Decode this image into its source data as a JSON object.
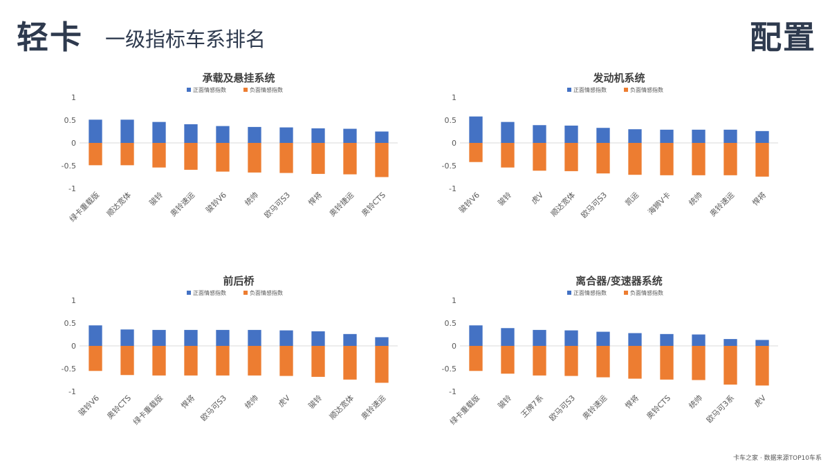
{
  "header": {
    "title": "轻卡",
    "subtitle": "一级指标车系排名",
    "right_label": "配置"
  },
  "footnote": "卡车之家 · 数据来源TOP10车系",
  "colors": {
    "positive": "#4472c4",
    "negative": "#ed7d31",
    "axis_text": "#595959",
    "title_text": "#404040"
  },
  "legend": {
    "positive": "正面情感指数",
    "negative": "负面情感指数"
  },
  "chart_data": [
    {
      "type": "bar",
      "title": "承载及悬挂系统",
      "categories": [
        "绿卡重载版",
        "顺达宽体",
        "骏铃",
        "奥铃速运",
        "骏铃V6",
        "统帅",
        "欧马可S3",
        "悍将",
        "奥铃捷运",
        "奥铃CTS"
      ],
      "series": [
        {
          "name": "正面情感指数",
          "values": [
            0.51,
            0.51,
            0.46,
            0.41,
            0.37,
            0.35,
            0.34,
            0.32,
            0.31,
            0.25
          ]
        },
        {
          "name": "负面情感指数",
          "values": [
            -0.49,
            -0.49,
            -0.54,
            -0.59,
            -0.63,
            -0.65,
            -0.66,
            -0.68,
            -0.69,
            -0.75
          ]
        }
      ],
      "ylim": [
        -1,
        1
      ],
      "yticks": [
        "1",
        "0.5",
        "0",
        "-0.5",
        "-1"
      ]
    },
    {
      "type": "bar",
      "title": "发动机系统",
      "categories": [
        "骏铃V6",
        "骏铃",
        "虎V",
        "顺达宽体",
        "欧马可S3",
        "凯运",
        "海狮V卡",
        "统帅",
        "奥铃速运",
        "悍将"
      ],
      "series": [
        {
          "name": "正面情感指数",
          "values": [
            0.58,
            0.46,
            0.39,
            0.38,
            0.33,
            0.3,
            0.29,
            0.29,
            0.29,
            0.26
          ]
        },
        {
          "name": "负面情感指数",
          "values": [
            -0.42,
            -0.54,
            -0.61,
            -0.62,
            -0.67,
            -0.7,
            -0.71,
            -0.71,
            -0.71,
            -0.74
          ]
        }
      ],
      "ylim": [
        -1,
        1
      ],
      "yticks": [
        "1",
        "0.5",
        "0",
        "-0.5",
        "-1"
      ]
    },
    {
      "type": "bar",
      "title": "前后桥",
      "categories": [
        "骏铃V6",
        "奥铃CTS",
        "绿卡重载版",
        "悍将",
        "欧马可S3",
        "统帅",
        "虎V",
        "骏铃",
        "顺达宽体",
        "奥铃速运"
      ],
      "series": [
        {
          "name": "正面情感指数",
          "values": [
            0.45,
            0.36,
            0.35,
            0.35,
            0.35,
            0.35,
            0.34,
            0.32,
            0.26,
            0.19
          ]
        },
        {
          "name": "负面情感指数",
          "values": [
            -0.55,
            -0.64,
            -0.65,
            -0.65,
            -0.65,
            -0.65,
            -0.66,
            -0.68,
            -0.74,
            -0.81
          ]
        }
      ],
      "ylim": [
        -1,
        1
      ],
      "yticks": [
        "1",
        "0.5",
        "0",
        "-0.5",
        "-1"
      ]
    },
    {
      "type": "bar",
      "title": "离合器/变速器系统",
      "categories": [
        "绿卡重载版",
        "骏铃",
        "王牌7系",
        "欧马可S3",
        "奥铃速运",
        "悍将",
        "奥铃CTS",
        "统帅",
        "欧马可3系",
        "虎V"
      ],
      "series": [
        {
          "name": "正面情感指数",
          "values": [
            0.45,
            0.39,
            0.35,
            0.34,
            0.31,
            0.28,
            0.26,
            0.25,
            0.15,
            0.13
          ]
        },
        {
          "name": "负面情感指数",
          "values": [
            -0.55,
            -0.61,
            -0.65,
            -0.66,
            -0.69,
            -0.72,
            -0.74,
            -0.75,
            -0.85,
            -0.87
          ]
        }
      ],
      "ylim": [
        -1,
        1
      ],
      "yticks": [
        "1",
        "0.5",
        "0",
        "-0.5",
        "-1"
      ]
    }
  ]
}
